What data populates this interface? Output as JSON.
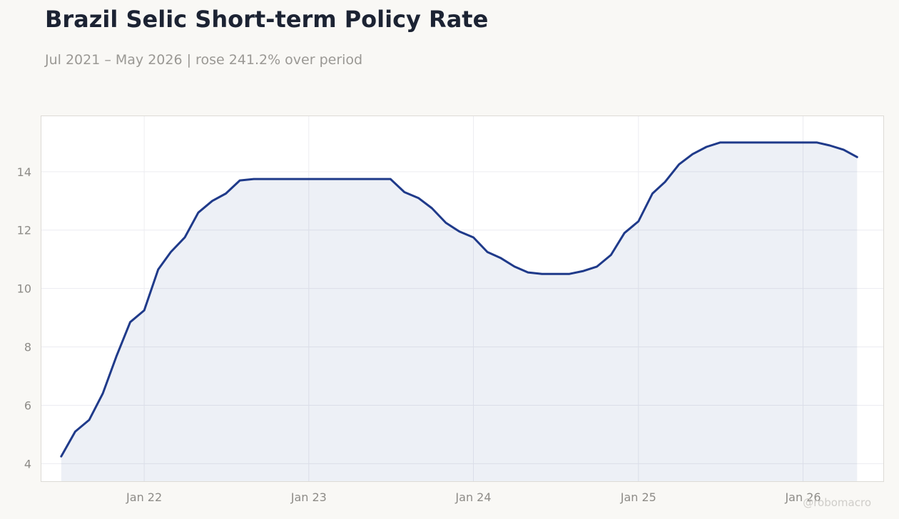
{
  "title": "Brazil Selic Short-term Policy Rate",
  "subtitle": "Jul 2021 – May 2026 | rose 241.2% over period",
  "watermark": "@robomacro",
  "colors": {
    "line": "#1f3a8a",
    "fill": "#eceef6",
    "background": "#f9f8f5",
    "plot_bg": "#ffffff"
  },
  "chart_data": {
    "type": "area",
    "title": "Brazil Selic Short-term Policy Rate",
    "xlabel": "",
    "ylabel": "",
    "grid": true,
    "legend": "none",
    "ylim": [
      3.4,
      15.9
    ],
    "xlim": [
      "2021-05-18",
      "2026-06-28"
    ],
    "y_ticks": [
      4,
      6,
      8,
      10,
      12,
      14
    ],
    "x_ticks": [
      {
        "date": "2022-01-01",
        "label": "Jan 22"
      },
      {
        "date": "2023-01-01",
        "label": "Jan 23"
      },
      {
        "date": "2024-01-01",
        "label": "Jan 24"
      },
      {
        "date": "2025-01-01",
        "label": "Jan 25"
      },
      {
        "date": "2026-01-01",
        "label": "Jan 26"
      }
    ],
    "x": [
      "2021-07",
      "2021-08",
      "2021-09",
      "2021-10",
      "2021-11",
      "2021-12",
      "2022-01",
      "2022-02",
      "2022-03",
      "2022-04",
      "2022-05",
      "2022-06",
      "2022-07",
      "2022-08",
      "2022-09",
      "2022-10",
      "2022-11",
      "2022-12",
      "2023-01",
      "2023-02",
      "2023-03",
      "2023-04",
      "2023-05",
      "2023-06",
      "2023-07",
      "2023-08",
      "2023-09",
      "2023-10",
      "2023-11",
      "2023-12",
      "2024-01",
      "2024-02",
      "2024-03",
      "2024-04",
      "2024-05",
      "2024-06",
      "2024-07",
      "2024-08",
      "2024-09",
      "2024-10",
      "2024-11",
      "2024-12",
      "2025-01",
      "2025-02",
      "2025-03",
      "2025-04",
      "2025-05",
      "2025-06",
      "2025-07",
      "2025-08",
      "2025-09",
      "2025-10",
      "2025-11",
      "2025-12",
      "2026-01",
      "2026-02",
      "2026-03",
      "2026-04",
      "2026-05"
    ],
    "series": [
      {
        "values": [
          4.25,
          5.1,
          5.5,
          6.4,
          7.7,
          8.85,
          9.25,
          10.65,
          11.25,
          11.75,
          12.6,
          13.0,
          13.25,
          13.7,
          13.75,
          13.75,
          13.75,
          13.75,
          13.75,
          13.75,
          13.75,
          13.75,
          13.75,
          13.75,
          13.75,
          13.3,
          13.1,
          12.75,
          12.25,
          11.95,
          11.75,
          11.25,
          11.05,
          10.75,
          10.55,
          10.5,
          10.5,
          10.5,
          10.6,
          10.75,
          11.15,
          11.9,
          12.3,
          13.25,
          13.65,
          14.25,
          14.6,
          14.85,
          15.0,
          15.0,
          15.0,
          15.0,
          15.0,
          15.0,
          15.0,
          15.0,
          14.9,
          14.75,
          14.5
        ]
      }
    ]
  }
}
